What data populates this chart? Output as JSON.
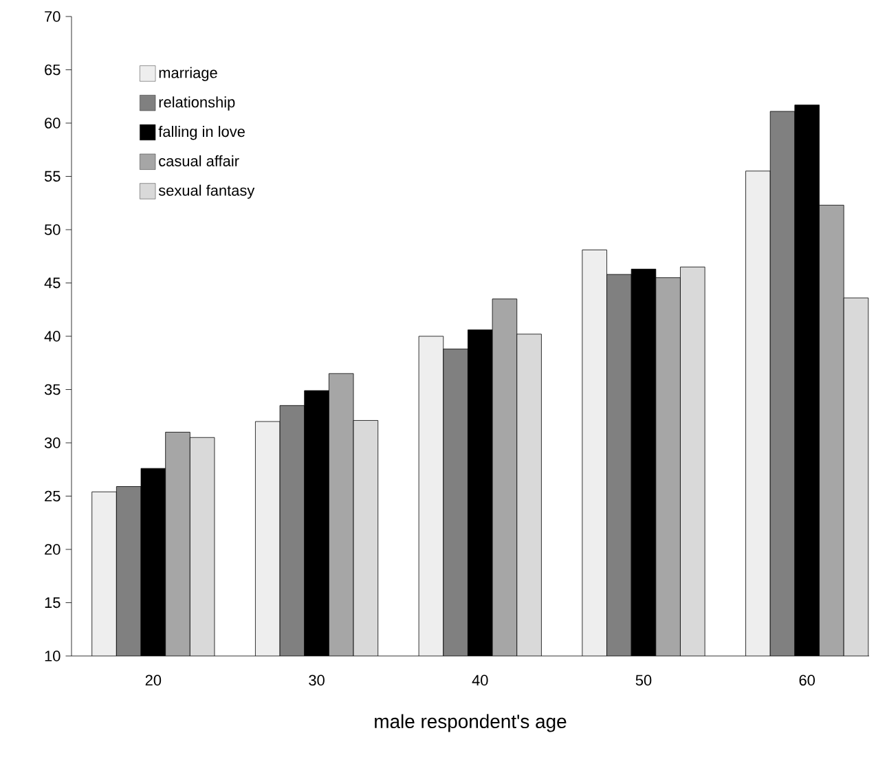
{
  "chart_data": {
    "type": "bar",
    "xlabel": "male respondent's age",
    "categories": [
      "20",
      "30",
      "40",
      "50",
      "60"
    ],
    "series": [
      {
        "name": "marriage",
        "color": "#eeeeee",
        "values": [
          25.4,
          32.0,
          40.0,
          48.1,
          55.5
        ]
      },
      {
        "name": "relationship",
        "color": "#808080",
        "values": [
          25.9,
          33.5,
          38.8,
          45.8,
          61.1
        ]
      },
      {
        "name": "falling in love",
        "color": "#000000",
        "values": [
          27.6,
          34.9,
          40.6,
          46.3,
          61.7
        ]
      },
      {
        "name": "casual affair",
        "color": "#a6a6a6",
        "values": [
          31.0,
          36.5,
          43.5,
          45.5,
          52.3
        ]
      },
      {
        "name": "sexual fantasy",
        "color": "#d9d9d9",
        "values": [
          30.5,
          32.1,
          40.2,
          46.5,
          43.6
        ]
      }
    ],
    "ylim": [
      10,
      70
    ],
    "yticks": [
      10,
      15,
      20,
      25,
      30,
      35,
      40,
      45,
      50,
      55,
      60,
      65,
      70
    ],
    "legend": "top left"
  }
}
